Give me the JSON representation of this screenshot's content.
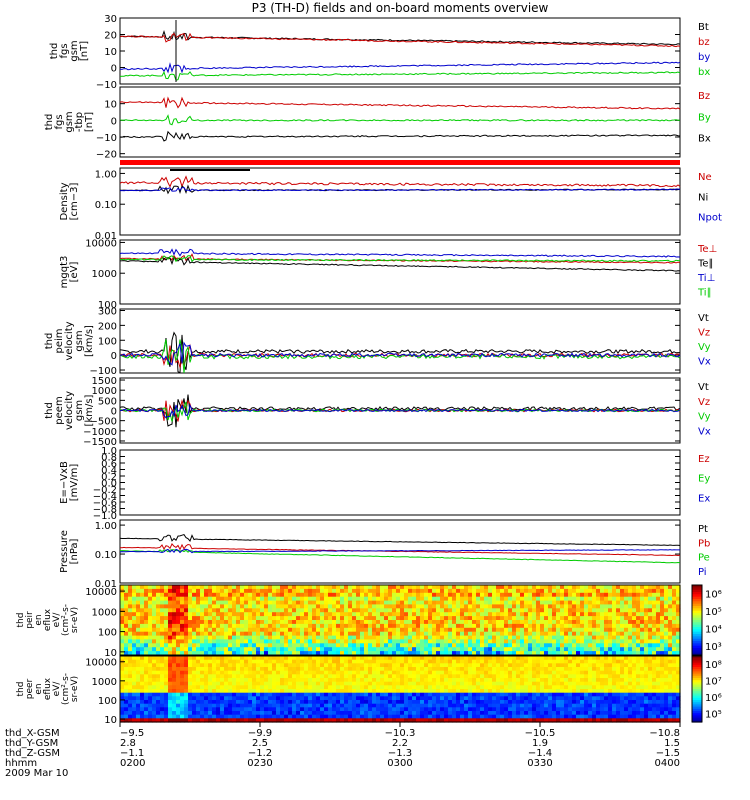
{
  "title": "P3 (TH-D) fields and on-board moments overview",
  "chart_data": {
    "type": "line",
    "title": "P3 (TH-D) fields and on-board moments overview",
    "date": "2009 Mar 10",
    "time_range": [
      "02:00",
      "04:00"
    ],
    "panels": [
      {
        "id": "fgs_gsm",
        "ylabel": [
          "thd",
          "fgs",
          "gsm",
          "[nT]"
        ],
        "ticks": [
          "30",
          "20",
          "10",
          "0",
          "−10"
        ],
        "tick_values": [
          30,
          20,
          10,
          0,
          -10
        ],
        "ylim": [
          -10,
          30
        ],
        "scale": "linear",
        "series": [
          {
            "name": "Bt",
            "color": "#000000",
            "start": 19,
            "end": 14,
            "noise": 0.4,
            "event": 3
          },
          {
            "name": "bz",
            "color": "#cc0000",
            "start": 19,
            "end": 13,
            "noise": 0.4,
            "event": 3
          },
          {
            "name": "by",
            "color": "#0000cc",
            "start": -1,
            "end": 3,
            "noise": 0.4,
            "event": 3
          },
          {
            "name": "bx",
            "color": "#00cc00",
            "start": -5,
            "end": -3,
            "noise": 0.4,
            "event": 3
          }
        ]
      },
      {
        "id": "fgs_gse",
        "ylabel": [
          "thd",
          "fgs",
          "gsm",
          "-tbp",
          "[nT]"
        ],
        "ticks": [
          "10",
          "0",
          "−10",
          "−20"
        ],
        "tick_values": [
          10,
          0,
          -10,
          -20
        ],
        "ylim": [
          -22,
          20
        ],
        "scale": "linear",
        "series": [
          {
            "name": "Bz",
            "color": "#cc0000",
            "start": 11,
            "end": 7,
            "noise": 0.4,
            "event": 3
          },
          {
            "name": "By",
            "color": "#00cc00",
            "start": 0,
            "end": 0,
            "noise": 0.4,
            "event": 3
          },
          {
            "name": "Bx",
            "color": "#000000",
            "start": -10,
            "end": -9,
            "noise": 0.4,
            "event": 3
          }
        ]
      },
      {
        "id": "density",
        "ylabel": [
          "Density",
          "[cm−3]"
        ],
        "ticks": [
          "1.00",
          "0.10",
          "0.01"
        ],
        "tick_values": [
          1,
          0.1,
          0.01
        ],
        "ylim": [
          0.01,
          1.5
        ],
        "scale": "log",
        "series": [
          {
            "name": "Ne",
            "color": "#cc0000",
            "start": 0.5,
            "end": 0.4,
            "noise": 0.08,
            "event": 0.3
          },
          {
            "name": "Ni",
            "color": "#000000",
            "start": 0.28,
            "end": 0.3,
            "noise": 0.04,
            "event": 0.2
          },
          {
            "name": "Npot",
            "color": "#0000cc",
            "start": 0.28,
            "end": 0.3,
            "noise": 0.04,
            "event": 0.1
          }
        ]
      },
      {
        "id": "temperature",
        "ylabel": [
          "mgqt3",
          "[eV]"
        ],
        "ticks": [
          "10000",
          "1000",
          "100"
        ],
        "tick_values": [
          10000,
          1000,
          100
        ],
        "ylim": [
          100,
          12000
        ],
        "scale": "log",
        "series": [
          {
            "name": "Te⊥",
            "color": "#cc0000",
            "start": 3000,
            "end": 2200,
            "noise": 0.04,
            "event": 0.2
          },
          {
            "name": "Te∥",
            "color": "#000000",
            "start": 2500,
            "end": 1200,
            "noise": 0.04,
            "event": 0.2
          },
          {
            "name": "Ti⊥",
            "color": "#0000cc",
            "start": 4500,
            "end": 3500,
            "noise": 0.05,
            "event": 0.2
          },
          {
            "name": "Ti∥",
            "color": "#00cc00",
            "start": 2800,
            "end": 2500,
            "noise": 0.05,
            "event": 0.2
          }
        ]
      },
      {
        "id": "peim_velocity",
        "ylabel": [
          "thd",
          "peim",
          "velocity",
          "gsm",
          "[km/s]"
        ],
        "ticks": [
          "300",
          "200",
          "100",
          "0",
          "−100"
        ],
        "tick_values": [
          300,
          200,
          100,
          0,
          -100
        ],
        "ylim": [
          -120,
          310
        ],
        "scale": "linear",
        "series": [
          {
            "name": "Vt",
            "color": "#000000",
            "start": 25,
            "end": 25,
            "noise": 12,
            "event": 150
          },
          {
            "name": "Vz",
            "color": "#cc0000",
            "start": 0,
            "end": 0,
            "noise": 12,
            "event": 80
          },
          {
            "name": "Vy",
            "color": "#00cc00",
            "start": -10,
            "end": -10,
            "noise": 14,
            "event": 120
          },
          {
            "name": "Vx",
            "color": "#0000cc",
            "start": 0,
            "end": 0,
            "noise": 12,
            "event": 80
          }
        ]
      },
      {
        "id": "peem_velocity",
        "ylabel": [
          "thd",
          "peem",
          "velocity",
          "gsm",
          "[km/s]"
        ],
        "ticks": [
          "1500",
          "1000",
          "500",
          "0",
          "−500",
          "−1000",
          "−1500"
        ],
        "tick_values": [
          1500,
          1000,
          500,
          0,
          -500,
          -1000,
          -1500
        ],
        "ylim": [
          -1600,
          1600
        ],
        "scale": "linear",
        "series": [
          {
            "name": "Vt",
            "color": "#000000",
            "start": 100,
            "end": 100,
            "noise": 80,
            "event": 1000
          },
          {
            "name": "Vz",
            "color": "#cc0000",
            "start": 0,
            "end": 0,
            "noise": 60,
            "event": 500
          },
          {
            "name": "Vy",
            "color": "#00cc00",
            "start": 0,
            "end": 0,
            "noise": 60,
            "event": 600
          },
          {
            "name": "Vx",
            "color": "#0000cc",
            "start": 0,
            "end": 0,
            "noise": 50,
            "event": 400
          }
        ]
      },
      {
        "id": "efield",
        "ylabel": [
          "E=−VxB",
          "[mV/m]"
        ],
        "ticks": [
          "1.0",
          "0.8",
          "0.6",
          "0.4",
          "0.2",
          "0.0",
          "−0.2",
          "−0.4",
          "−0.6",
          "−0.8",
          "−1.0"
        ],
        "tick_values": [
          1,
          0.8,
          0.6,
          0.4,
          0.2,
          0,
          -0.2,
          -0.4,
          -0.6,
          -0.8,
          -1
        ],
        "ylim": [
          -1,
          1
        ],
        "scale": "linear",
        "series": [
          {
            "name": "Ez",
            "color": "#cc0000",
            "empty": true
          },
          {
            "name": "Ey",
            "color": "#00cc00",
            "empty": true
          },
          {
            "name": "Ex",
            "color": "#0000cc",
            "empty": true
          }
        ]
      },
      {
        "id": "pressure",
        "ylabel": [
          "Pressure",
          "[nPa]"
        ],
        "ticks": [
          "1.00",
          "0.10",
          "0.01"
        ],
        "tick_values": [
          1,
          0.1,
          0.01
        ],
        "ylim": [
          0.01,
          1.5
        ],
        "scale": "log",
        "series": [
          {
            "name": "Pt",
            "color": "#000000",
            "start": 0.35,
            "end": 0.2,
            "noise": 0.02,
            "event": 0.2
          },
          {
            "name": "Pb",
            "color": "#cc0000",
            "start": 0.17,
            "end": 0.09,
            "noise": 0.02,
            "event": 0.2
          },
          {
            "name": "Pe",
            "color": "#00cc00",
            "start": 0.13,
            "end": 0.05,
            "noise": 0.02,
            "event": 0.1
          },
          {
            "name": "Pi",
            "color": "#0000cc",
            "start": 0.12,
            "end": 0.14,
            "noise": 0.02,
            "event": 0.1
          }
        ]
      }
    ],
    "spectrograms": [
      {
        "id": "peir_en_eflux",
        "ylabel": [
          "thd",
          "peir",
          "en",
          "eflux",
          "eV/",
          "(cm²-s-",
          "sr-eV)"
        ],
        "ticks": [
          "10000",
          "1000",
          "100",
          "10"
        ],
        "tick_values": [
          10000,
          1000,
          100,
          10
        ],
        "ylim": [
          7,
          20000
        ],
        "colorbar_labels": [
          "10⁶",
          "10⁵",
          "10⁴",
          "10³"
        ],
        "colorbar_values": [
          1000000,
          100000,
          10000,
          1000
        ],
        "colorbar_range": [
          300,
          3000000
        ]
      },
      {
        "id": "peer_en_eflux",
        "ylabel": [
          "thd",
          "peer",
          "en",
          "eflux",
          "eV/",
          "(cm²-s-",
          "sr-eV)"
        ],
        "ticks": [
          "10000",
          "1000",
          "100",
          "10"
        ],
        "tick_values": [
          10000,
          1000,
          100,
          10
        ],
        "ylim": [
          7,
          20000
        ],
        "colorbar_labels": [
          "10⁸",
          "10⁷",
          "10⁶",
          "10⁵"
        ],
        "colorbar_values": [
          100000000,
          10000000,
          1000000,
          100000
        ],
        "colorbar_range": [
          30000,
          300000000
        ]
      }
    ],
    "x_axis": {
      "labels": [
        "thd_X-GSM",
        "thd_Y-GSM",
        "thd_Z-GSM",
        "hhmm",
        "2009 Mar 10"
      ],
      "ticks": [
        {
          "values": [
            "−9.5",
            "2.8",
            "−1.1",
            "0200"
          ],
          "frac": 0.0
        },
        {
          "values": [
            "−9.9",
            "2.5",
            "−1.2",
            "0230"
          ],
          "frac": 0.25
        },
        {
          "values": [
            "−10.3",
            "2.2",
            "−1.3",
            "0300"
          ],
          "frac": 0.5
        },
        {
          "values": [
            "−10.5",
            "1.9",
            "−1.4",
            "0330"
          ],
          "frac": 0.75
        },
        {
          "values": [
            "−10.8",
            "1.5",
            "−1.5",
            "0400"
          ],
          "frac": 1.0
        }
      ]
    },
    "event_time_frac": 0.1
  }
}
